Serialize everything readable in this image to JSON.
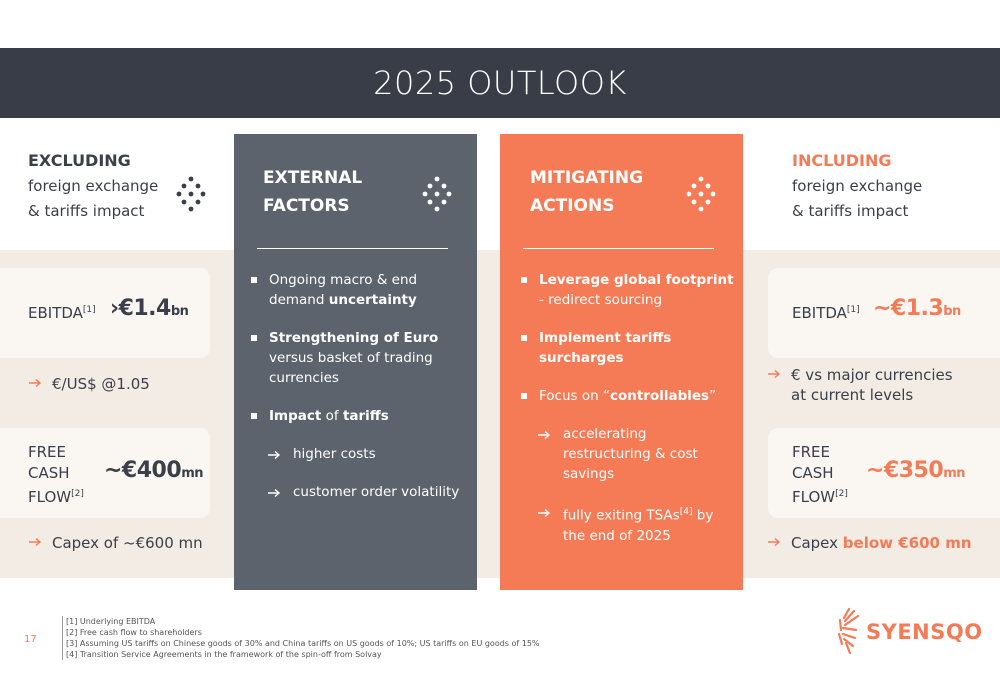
{
  "header": {
    "title": "2025 OUTLOOK"
  },
  "excluding": {
    "heading": "EXCLUDING",
    "subtitle": [
      "foreign exchange",
      "& tariffs impact"
    ],
    "ebitda": {
      "label": "EBITDA",
      "ref": "[1]",
      "prefix": "›€",
      "value": "1.4",
      "unit": "bn"
    },
    "ebitda_note": [
      {
        "text": "€/US$ @1.05"
      }
    ],
    "fcf": {
      "label": [
        "FREE",
        "CASH",
        "FLOW"
      ],
      "ref": "[2]",
      "prefix": "~€",
      "value": "400",
      "unit": "mn"
    },
    "fcf_note": [
      {
        "text": "Capex of ~€600 mn"
      }
    ]
  },
  "including": {
    "heading": "INCLUDING",
    "subtitle": [
      "foreign exchange",
      "& tariffs impact"
    ],
    "ebitda": {
      "label": "EBITDA",
      "ref": "[1]",
      "prefix": "~€",
      "value": "1.3",
      "unit": "bn"
    },
    "ebitda_note": [
      {
        "text": "€ vs major currencies at current levels"
      }
    ],
    "fcf": {
      "label": [
        "FREE",
        "CASH",
        "FLOW"
      ],
      "ref": "[2]",
      "prefix": "~€",
      "value": "350",
      "unit": "mn"
    },
    "fcf_note": [
      {
        "text": "Capex "
      },
      {
        "text": "below €600 mn",
        "bold": true
      }
    ]
  },
  "external": {
    "heading": [
      "EXTERNAL",
      "FACTORS"
    ],
    "items": [
      {
        "runs": [
          {
            "text": "Ongoing macro & end demand "
          },
          {
            "text": "uncertainty",
            "bold": true
          }
        ]
      },
      {
        "runs": [
          {
            "text": "Strengthening of Euro",
            "bold": true
          },
          {
            "text": " versus basket of trading currencies"
          }
        ]
      },
      {
        "runs": [
          {
            "text": "Impact",
            "bold": true
          },
          {
            "text": " of "
          },
          {
            "text": "tariffs",
            "bold": true
          }
        ]
      },
      {
        "sub": true,
        "runs": [
          {
            "text": "higher costs"
          }
        ]
      },
      {
        "sub": true,
        "runs": [
          {
            "text": "customer order volatility"
          }
        ]
      }
    ]
  },
  "mitigating": {
    "heading": [
      "MITIGATING",
      "ACTIONS"
    ],
    "items": [
      {
        "runs": [
          {
            "text": "Leverage global footprint",
            "bold": true
          },
          {
            "text": " - redirect sourcing"
          }
        ]
      },
      {
        "runs": [
          {
            "text": "Implement tariffs surcharges",
            "bold": true
          }
        ]
      },
      {
        "runs": [
          {
            "text": "Focus on “"
          },
          {
            "text": "controllables",
            "bold": true
          },
          {
            "text": "”"
          }
        ]
      },
      {
        "sub": true,
        "runs": [
          {
            "text": "accelerating restructuring & cost savings"
          }
        ]
      },
      {
        "sub": true,
        "runs": [
          {
            "text": "fully exiting TSAs"
          },
          {
            "text": "[4]",
            "sup": true
          },
          {
            "text": " by the end of 2025"
          }
        ]
      }
    ]
  },
  "footer": {
    "page_number": "17",
    "footnotes": [
      "[1] Underlying EBITDA",
      "[2] Free cash flow to shareholders",
      "[3] Assuming US tariffs on Chinese goods of 30% and China tariffs on US goods of 10%; US tariffs on EU goods of 15%",
      "[4] Transition Service Agreements in the framework of the spin-off from Solvay"
    ],
    "logo": "SYENSQO"
  }
}
